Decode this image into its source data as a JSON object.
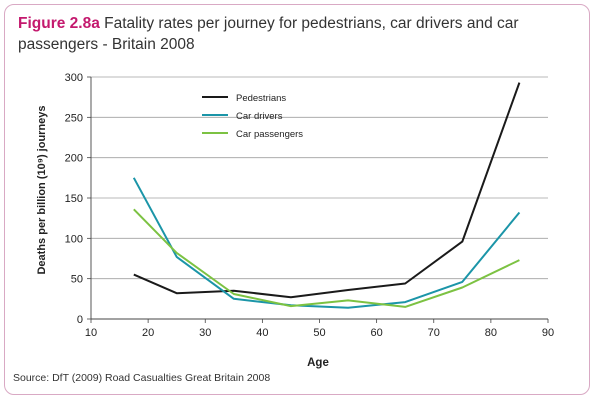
{
  "figure": {
    "label": "Figure 2.8a",
    "title": "Fatality rates per journey for pedestrians, car drivers and car passengers - Britain 2008",
    "source": "Source: DfT (2009) Road Casualties Great Britain 2008",
    "frame_color": "#d9a9c4",
    "label_color": "#c4196e"
  },
  "chart_data": {
    "type": "line",
    "title": "Fatality rates per journey for pedestrians, car drivers and car passengers - Britain 2008",
    "xlabel": "Age",
    "ylabel": "Deaths per billion (10⁹) journeys",
    "xlim": [
      10,
      90
    ],
    "ylim": [
      0,
      300
    ],
    "xticks": [
      10,
      20,
      30,
      40,
      50,
      60,
      70,
      80,
      90
    ],
    "yticks": [
      0,
      50,
      100,
      150,
      200,
      250,
      300
    ],
    "grid": "horizontal",
    "legend_position": "top-left",
    "series": [
      {
        "name": "Pedestrians",
        "color": "#1a1a1a",
        "x": [
          17.5,
          25,
          35,
          45,
          55,
          65,
          75,
          85
        ],
        "y": [
          55,
          32,
          35,
          27,
          36,
          44,
          96,
          293
        ]
      },
      {
        "name": "Car drivers",
        "color": "#1b95a8",
        "x": [
          17.5,
          25,
          35,
          45,
          55,
          65,
          75,
          85
        ],
        "y": [
          175,
          77,
          25,
          17,
          14,
          21,
          46,
          132
        ]
      },
      {
        "name": "Car passengers",
        "color": "#7cc242",
        "x": [
          17.5,
          25,
          35,
          45,
          55,
          65,
          75,
          85
        ],
        "y": [
          136,
          82,
          31,
          16,
          23,
          15,
          39,
          73
        ]
      }
    ]
  }
}
